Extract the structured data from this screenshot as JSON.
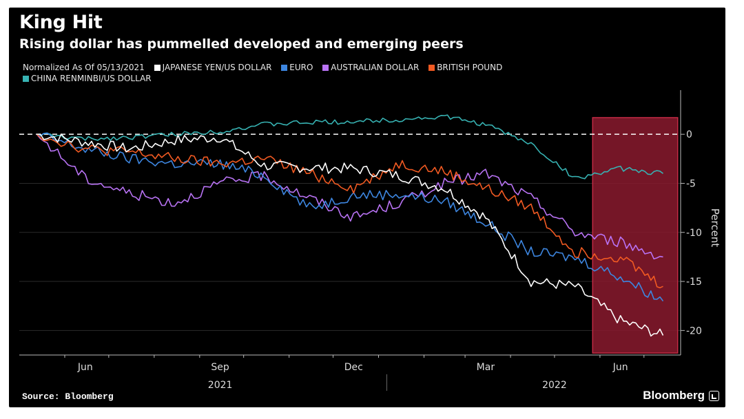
{
  "title": "King Hit",
  "subtitle": "Rising dollar has pummelled developed and emerging peers",
  "source": "Source: Bloomberg",
  "brand": "Bloomberg",
  "chart_data": {
    "type": "line",
    "legend_prefix": "Normalized As Of 05/13/2021",
    "ylabel": "Percent",
    "ylim": [
      -22.5,
      4.5
    ],
    "yticks": [
      0,
      -5,
      -10,
      -15,
      -20
    ],
    "ytick_labels": [
      "0",
      "-5",
      "-10",
      "-15",
      "-20"
    ],
    "x_months": [
      "Jun",
      "Sep",
      "Dec",
      "Mar",
      "Jun"
    ],
    "x_years": [
      "2021",
      "2022"
    ],
    "reference_line": 0,
    "highlight": {
      "color": "#8a1a2e"
    },
    "x_dates": [
      "2021-05-13",
      "2021-06-15",
      "2021-07-15",
      "2021-08-15",
      "2021-09-15",
      "2021-10-15",
      "2021-11-15",
      "2021-12-15",
      "2022-01-15",
      "2022-02-15",
      "2022-03-15",
      "2022-04-15",
      "2022-05-15",
      "2022-06-15",
      "2022-07-14"
    ],
    "series": [
      {
        "name": "JAPANESE YEN/US DOLLAR",
        "color": "#ffffff",
        "values": [
          0,
          -0.8,
          -1.5,
          -0.6,
          -0.3,
          -3.2,
          -3.4,
          -3.5,
          -4.2,
          -5.5,
          -8.5,
          -15.0,
          -15.5,
          -19.0,
          -20.5
        ]
      },
      {
        "name": "EURO",
        "color": "#3d86e0",
        "values": [
          0,
          -1.5,
          -2.5,
          -3.0,
          -3.0,
          -4.2,
          -7.5,
          -6.2,
          -6.1,
          -6.8,
          -9.0,
          -12.0,
          -12.6,
          -14.5,
          -17.0
        ]
      },
      {
        "name": "AUSTRALIAN DOLLAR",
        "color": "#b973f5",
        "values": [
          0,
          -4.5,
          -6.0,
          -7.0,
          -5.0,
          -4.2,
          -6.5,
          -8.5,
          -7.0,
          -5.0,
          -4.0,
          -6.5,
          -10.0,
          -11.0,
          -12.5
        ]
      },
      {
        "name": "BRITISH POUND",
        "color": "#f25a22",
        "values": [
          0,
          -1.5,
          -1.8,
          -2.5,
          -3.0,
          -2.5,
          -4.0,
          -5.5,
          -3.0,
          -3.8,
          -5.5,
          -7.5,
          -12.0,
          -12.5,
          -15.5
        ]
      },
      {
        "name": "CHINA RENMINBI/US DOLLAR",
        "color": "#37b3b3",
        "values": [
          0,
          -0.5,
          -0.3,
          0,
          0.3,
          1.0,
          1.2,
          1.3,
          1.5,
          1.8,
          1.0,
          -1.0,
          -4.5,
          -3.5,
          -4.0
        ]
      }
    ]
  }
}
